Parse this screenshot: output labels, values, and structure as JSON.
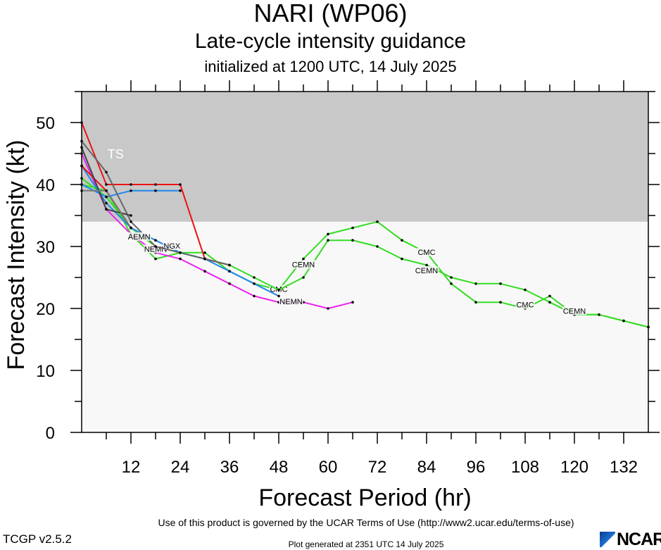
{
  "header": {
    "title": "NARI (WP06)",
    "subtitle": "Late-cycle intensity guidance",
    "initialized": "initialized at 1200 UTC, 14 July 2025"
  },
  "footer": {
    "terms": "Use of this product is governed by the UCAR Terms of Use (http://www2.ucar.edu/terms-of-use)",
    "version": "TCGP v2.5.2",
    "generated": "Plot generated at 2351 UTC   14 July 2025",
    "logo": "NCAR"
  },
  "chart_data": {
    "type": "line",
    "title": "NARI (WP06)",
    "xlabel": "Forecast Period (hr)",
    "ylabel": "Forecast Intensity (kt)",
    "xlim": [
      0,
      138
    ],
    "ylim": [
      0,
      55
    ],
    "xticks": [
      12,
      24,
      36,
      48,
      60,
      72,
      84,
      96,
      108,
      120,
      132
    ],
    "yticks": [
      0,
      10,
      20,
      30,
      40,
      50
    ],
    "band": {
      "label": "TS",
      "from": 34,
      "to": 55,
      "color": "#c8c8c8"
    },
    "plot_background": "#f8f8f8",
    "series": [
      {
        "name": "CMC",
        "color": "#33dd22",
        "label_at": [
          [
            48,
            23
          ],
          [
            84,
            29
          ],
          [
            108,
            20.5
          ]
        ],
        "x": [
          0,
          6,
          12,
          18,
          24,
          30,
          36,
          42,
          48,
          54,
          60,
          66,
          72,
          78,
          84,
          90,
          96,
          102,
          108,
          114,
          120,
          126,
          132,
          138
        ],
        "y": [
          40,
          39,
          32,
          28,
          29,
          29,
          26,
          24,
          23,
          28,
          32,
          33,
          34,
          31,
          29,
          24,
          21,
          21,
          20,
          22,
          19,
          19,
          18,
          17
        ]
      },
      {
        "name": "CEMN",
        "color": "#33dd22",
        "label_at": [
          [
            54,
            27
          ],
          [
            84,
            26
          ],
          [
            120,
            19.5
          ]
        ],
        "x": [
          0,
          6,
          12,
          18,
          24,
          30,
          36,
          42,
          48,
          54,
          60,
          66,
          72,
          78,
          84,
          90,
          96,
          102,
          108,
          114,
          120,
          126,
          132,
          138
        ],
        "y": [
          41,
          38,
          33,
          30,
          29,
          28,
          27,
          25,
          23,
          25,
          31,
          31,
          30,
          28,
          27,
          25,
          24,
          24,
          23,
          21,
          19,
          19,
          18,
          17
        ]
      },
      {
        "name": "NEMN",
        "color": "#ee22ee",
        "label_at": [
          [
            18,
            29.5
          ],
          [
            51,
            21
          ]
        ],
        "x": [
          0,
          6,
          12,
          18,
          24,
          30,
          36,
          42,
          48,
          54,
          60,
          66
        ],
        "y": [
          45,
          36,
          32,
          29,
          28,
          26,
          24,
          22,
          21,
          21,
          20,
          21
        ]
      },
      {
        "name": "NGX",
        "color": "#1e88ee",
        "label_at": [
          [
            22,
            30
          ]
        ],
        "x": [
          0,
          6,
          12,
          18,
          24,
          30,
          36,
          42,
          48
        ],
        "y": [
          43,
          37,
          33,
          31,
          29,
          28,
          26,
          24,
          22
        ]
      },
      {
        "name": "",
        "color": "#1e88ee",
        "label_at": [],
        "x": [
          0,
          6,
          12,
          18,
          24
        ],
        "y": [
          40,
          38,
          39,
          39,
          39
        ]
      },
      {
        "name": "",
        "color": "#ee1111",
        "label_at": [],
        "x": [
          0,
          6,
          12,
          18,
          24,
          30,
          36
        ],
        "y": [
          50,
          40,
          40,
          40,
          40,
          28,
          27
        ]
      },
      {
        "name": "",
        "color": "#ee1111",
        "label_at": [],
        "x": [
          0,
          6,
          12
        ],
        "y": [
          43,
          39,
          33
        ]
      },
      {
        "name": "AEMN",
        "color": "#666666",
        "label_at": [
          [
            14,
            31.5
          ]
        ],
        "x": [
          0,
          6,
          12,
          18,
          24,
          30,
          36
        ],
        "y": [
          47,
          42,
          34,
          30,
          29,
          28,
          27
        ]
      },
      {
        "name": "",
        "color": "#444444",
        "label_at": [],
        "x": [
          0,
          6,
          12
        ],
        "y": [
          46,
          36,
          35
        ]
      },
      {
        "name": "",
        "color": "#777777",
        "label_at": [],
        "x": [
          0,
          6,
          12
        ],
        "y": [
          39,
          39,
          33
        ]
      }
    ]
  }
}
